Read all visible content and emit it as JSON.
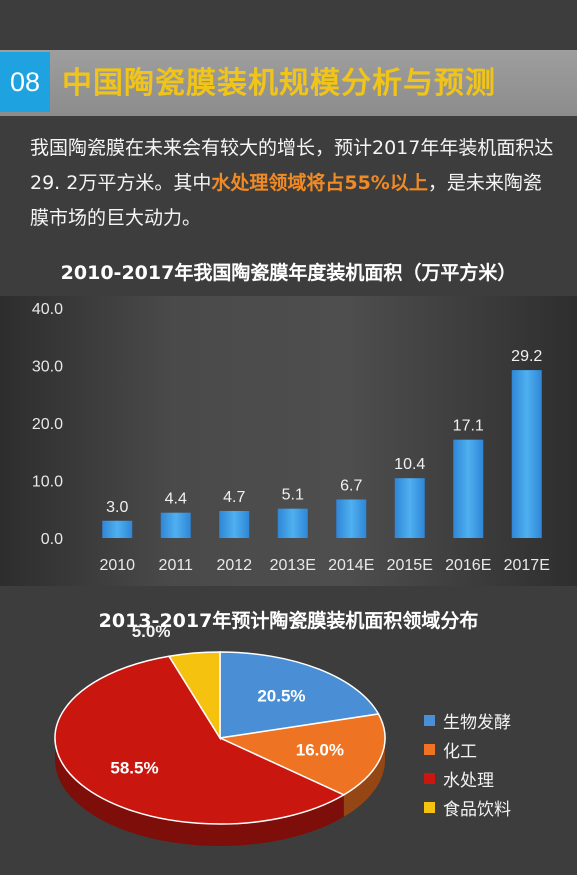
{
  "header": {
    "section_number": "08",
    "title": "中国陶瓷膜装机规模分析与预测"
  },
  "intro": {
    "part1": "我国陶瓷膜在未来会有较大的增长，预计2017年年装机面积达29. 2万平方米。其中",
    "highlight": "水处理领域将占55%以上",
    "part2": "，是未来陶瓷膜市场的巨大动力。"
  },
  "colors": {
    "accent_blue": "#1fa3e0",
    "title_yellow": "#f0c419",
    "highlight_orange": "#f08a24",
    "bar_blue": "#3b9be3",
    "pie_blue": "#4a8fd6",
    "pie_orange": "#ee7322",
    "pie_red": "#c9170f",
    "pie_yellow": "#f5c30f"
  },
  "chart_data": [
    {
      "type": "bar",
      "title": "2010-2017年我国陶瓷膜年度装机面积（万平方米）",
      "categories": [
        "2010",
        "2011",
        "2012",
        "2013E",
        "2014E",
        "2015E",
        "2016E",
        "2017E"
      ],
      "values": [
        3.0,
        4.4,
        4.7,
        5.1,
        6.7,
        10.4,
        17.1,
        29.2
      ],
      "value_labels": [
        "3.0",
        "4.4",
        "4.7",
        "5.1",
        "6.7",
        "10.4",
        "17.1",
        "29.2"
      ],
      "ylim": [
        0,
        40
      ],
      "yticks": [
        0,
        10,
        20,
        30,
        40
      ],
      "ytick_labels": [
        "0.0",
        "10.0",
        "20.0",
        "30.0",
        "40.0"
      ],
      "grid": false
    },
    {
      "type": "pie",
      "title": "2013-2017年预计陶瓷膜装机面积领域分布",
      "slices": [
        {
          "label": "生物发酵",
          "value": 20.5,
          "value_label": "20.5%",
          "color": "#4a8fd6"
        },
        {
          "label": "化工",
          "value": 16.0,
          "value_label": "16.0%",
          "color": "#ee7322"
        },
        {
          "label": "水处理",
          "value": 58.5,
          "value_label": "58.5%",
          "color": "#c9170f"
        },
        {
          "label": "食品饮料",
          "value": 5.0,
          "value_label": "5.0%",
          "color": "#f5c30f"
        }
      ],
      "legend_position": "right"
    }
  ]
}
